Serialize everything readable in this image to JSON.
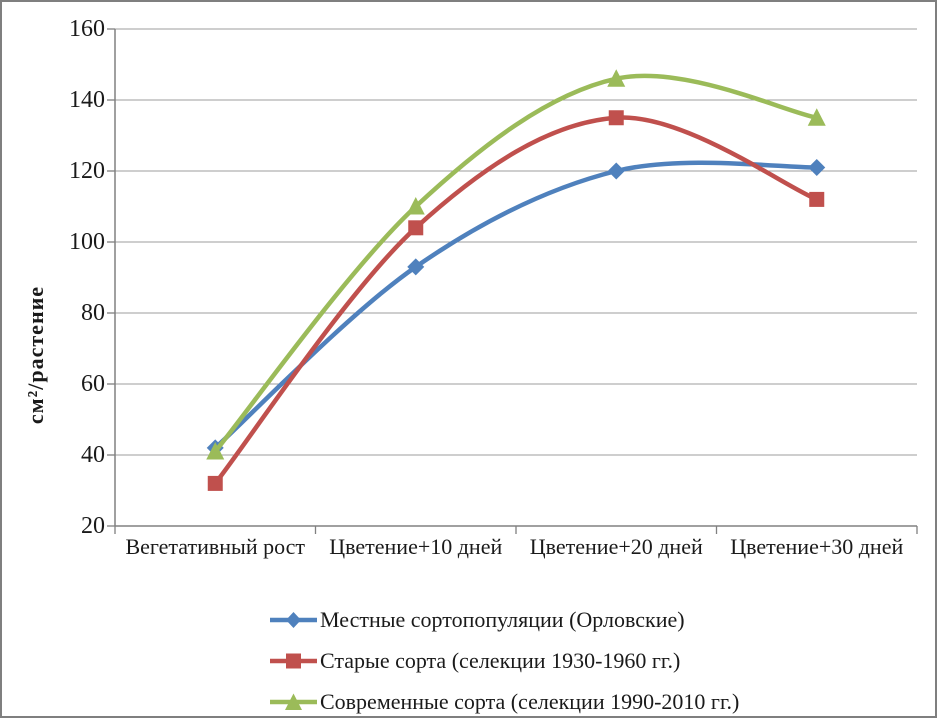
{
  "chart_data": {
    "type": "line",
    "smooth": true,
    "categories": [
      "Вегетативный рост",
      "Цветение+10 дней",
      "Цветение+20 дней",
      "Цветение+30 дней"
    ],
    "series": [
      {
        "name": "Местные сортопопуляции (Орловские)",
        "marker": "diamond",
        "color": "#4F81BD",
        "values": [
          42,
          93,
          120,
          121
        ]
      },
      {
        "name": "Старые сорта (селекции 1930-1960 гг.)",
        "marker": "square",
        "color": "#C0504D",
        "values": [
          32,
          104,
          135,
          112
        ]
      },
      {
        "name": "Современные сорта (селекции 1990-2010 гг.)",
        "marker": "triangle",
        "color": "#9BBB59",
        "values": [
          41,
          110,
          146,
          135
        ]
      }
    ],
    "title": "",
    "xlabel": "",
    "ylabel": "см²/растение",
    "ylim": [
      20,
      160
    ],
    "ytick_step": 20,
    "yticks": [
      20,
      40,
      60,
      80,
      100,
      120,
      140,
      160
    ],
    "grid": "horizontal",
    "legend_position": "bottom-left"
  },
  "colors": {
    "axis": "#808080",
    "grid": "#9C9C9C",
    "text": "#1A1A1A"
  }
}
